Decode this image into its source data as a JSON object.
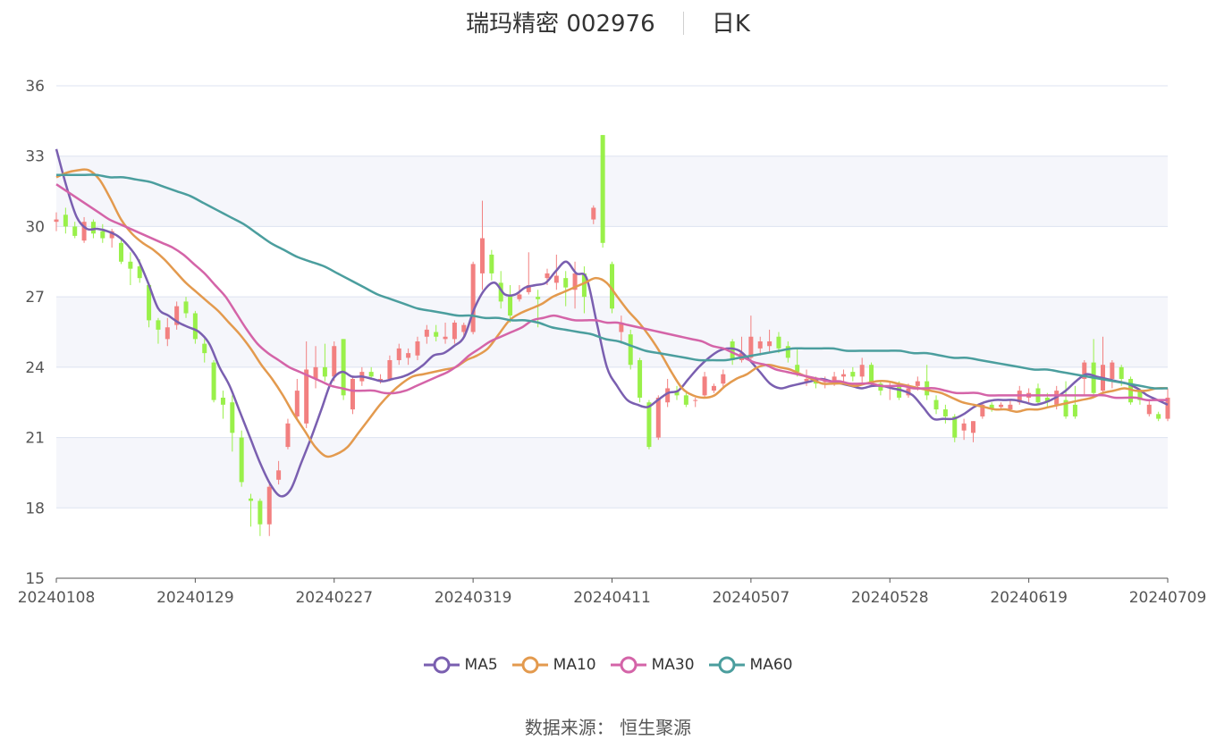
{
  "chart_data": {
    "type": "candlestick",
    "title": "瑞玛精密 002976",
    "period_label": "日K",
    "source_label": "数据来源：",
    "source_name": "恒生聚源",
    "ylim": [
      15,
      36
    ],
    "yticks": [
      15,
      18,
      21,
      24,
      27,
      30,
      33,
      36
    ],
    "xtick_labels": [
      "20240108",
      "20240129",
      "20240227",
      "20240319",
      "20240411",
      "20240507",
      "20240528",
      "20240619",
      "20240709"
    ],
    "xtick_index": [
      0,
      15,
      30,
      45,
      60,
      75,
      90,
      105,
      120
    ],
    "grid": true,
    "legend_position": "bottom",
    "colors": {
      "up": "#f28080",
      "down": "#99f04a",
      "ma5": "#7a5fb0",
      "ma10": "#e39a4e",
      "ma30": "#d464a8",
      "ma60": "#4b9e9e"
    },
    "candles": [
      [
        30.2,
        30.3,
        30.6,
        29.8
      ],
      [
        30.5,
        30.0,
        30.8,
        29.7
      ],
      [
        30.0,
        29.6,
        30.2,
        29.5
      ],
      [
        29.4,
        30.2,
        30.4,
        29.3
      ],
      [
        30.2,
        29.7,
        30.3,
        29.5
      ],
      [
        29.8,
        29.5,
        30.1,
        29.3
      ],
      [
        29.5,
        29.8,
        29.9,
        29.1
      ],
      [
        29.3,
        28.5,
        29.5,
        28.4
      ],
      [
        28.5,
        28.2,
        28.9,
        27.5
      ],
      [
        28.3,
        27.8,
        28.6,
        27.6
      ],
      [
        27.5,
        26.0,
        27.6,
        25.7
      ],
      [
        26.0,
        25.6,
        26.1,
        25.0
      ],
      [
        25.2,
        25.7,
        26.1,
        24.9
      ],
      [
        25.8,
        26.6,
        26.8,
        25.6
      ],
      [
        26.8,
        26.3,
        27.0,
        26.1
      ],
      [
        26.3,
        25.2,
        26.4,
        25.0
      ],
      [
        25.0,
        24.6,
        25.2,
        24.2
      ],
      [
        24.2,
        22.6,
        24.3,
        22.5
      ],
      [
        22.7,
        22.4,
        23.0,
        21.8
      ],
      [
        22.5,
        21.2,
        22.8,
        20.4
      ],
      [
        21.0,
        19.1,
        21.3,
        18.9
      ],
      [
        18.4,
        18.3,
        18.6,
        17.2
      ],
      [
        18.3,
        17.3,
        18.4,
        16.8
      ],
      [
        17.3,
        18.9,
        19.0,
        16.8
      ],
      [
        19.2,
        19.6,
        20.0,
        19.0
      ],
      [
        20.6,
        21.6,
        21.8,
        20.5
      ],
      [
        21.9,
        23.0,
        23.5,
        21.8
      ],
      [
        21.6,
        23.9,
        25.1,
        21.4
      ],
      [
        23.5,
        24.0,
        24.9,
        23.1
      ],
      [
        24.0,
        23.6,
        25.0,
        23.4
      ],
      [
        23.6,
        24.9,
        25.1,
        23.4
      ],
      [
        25.2,
        22.8,
        25.2,
        22.6
      ],
      [
        22.2,
        23.5,
        23.6,
        22.0
      ],
      [
        23.4,
        23.8,
        24.0,
        23.2
      ],
      [
        23.8,
        23.6,
        24.0,
        23.5
      ],
      [
        23.4,
        23.5,
        23.7,
        23.3
      ],
      [
        23.5,
        24.3,
        24.5,
        23.4
      ],
      [
        24.3,
        24.8,
        25.0,
        24.1
      ],
      [
        24.4,
        24.6,
        24.8,
        24.1
      ],
      [
        24.5,
        25.1,
        25.3,
        24.3
      ],
      [
        25.3,
        25.6,
        25.8,
        25.0
      ],
      [
        25.5,
        25.3,
        25.8,
        25.1
      ],
      [
        25.2,
        25.3,
        25.9,
        25.0
      ],
      [
        25.2,
        25.9,
        26.0,
        25.0
      ],
      [
        25.5,
        25.8,
        25.9,
        25.3
      ],
      [
        25.5,
        28.4,
        28.5,
        25.4
      ],
      [
        28.0,
        29.5,
        31.1,
        27.3
      ],
      [
        28.8,
        28.0,
        29.0,
        27.7
      ],
      [
        27.6,
        26.8,
        28.1,
        26.5
      ],
      [
        27.1,
        26.2,
        27.5,
        25.9
      ],
      [
        26.9,
        27.1,
        27.5,
        26.8
      ],
      [
        27.2,
        27.5,
        28.9,
        27.1
      ],
      [
        27.0,
        26.9,
        27.3,
        25.7
      ],
      [
        27.8,
        28.0,
        28.2,
        27.5
      ],
      [
        27.6,
        27.9,
        28.8,
        27.3
      ],
      [
        27.8,
        27.4,
        28.1,
        26.6
      ],
      [
        27.3,
        28.0,
        28.5,
        26.5
      ],
      [
        28.0,
        27.0,
        28.3,
        26.3
      ],
      [
        30.3,
        30.8,
        30.9,
        30.1
      ],
      [
        33.9,
        29.3,
        33.9,
        29.1
      ],
      [
        28.4,
        26.5,
        28.5,
        26.3
      ],
      [
        25.5,
        25.9,
        26.2,
        25.0
      ],
      [
        25.4,
        24.1,
        25.6,
        23.9
      ],
      [
        24.3,
        22.7,
        24.4,
        22.5
      ],
      [
        22.5,
        20.6,
        22.6,
        20.5
      ],
      [
        21.0,
        22.7,
        22.8,
        20.9
      ],
      [
        22.5,
        23.1,
        23.5,
        22.3
      ],
      [
        23.0,
        22.8,
        23.2,
        22.6
      ],
      [
        22.8,
        22.4,
        22.9,
        22.3
      ],
      [
        22.6,
        22.6,
        22.7,
        22.3
      ],
      [
        22.8,
        23.6,
        23.8,
        22.7
      ],
      [
        23.0,
        23.2,
        23.3,
        22.9
      ],
      [
        23.3,
        23.7,
        23.9,
        23.1
      ],
      [
        25.1,
        24.3,
        25.2,
        24.1
      ],
      [
        24.3,
        24.6,
        25.3,
        24.2
      ],
      [
        24.4,
        25.3,
        26.2,
        24.2
      ],
      [
        24.8,
        25.1,
        25.3,
        24.5
      ],
      [
        24.9,
        25.1,
        25.6,
        24.6
      ],
      [
        25.3,
        24.8,
        25.5,
        24.6
      ],
      [
        24.9,
        24.4,
        25.1,
        24.2
      ],
      [
        24.1,
        23.8,
        24.8,
        23.6
      ],
      [
        23.4,
        23.5,
        23.9,
        23.2
      ],
      [
        23.5,
        23.3,
        23.6,
        23.1
      ],
      [
        23.4,
        23.4,
        23.6,
        23.1
      ],
      [
        23.3,
        23.6,
        23.8,
        23.2
      ],
      [
        23.6,
        23.7,
        23.9,
        23.3
      ],
      [
        23.8,
        23.6,
        24.0,
        23.4
      ],
      [
        23.6,
        24.1,
        24.4,
        23.3
      ],
      [
        24.1,
        23.3,
        24.2,
        23.2
      ],
      [
        23.3,
        23.0,
        23.4,
        22.8
      ],
      [
        23.1,
        23.2,
        23.4,
        22.6
      ],
      [
        23.2,
        22.7,
        23.4,
        22.6
      ],
      [
        22.8,
        23.1,
        23.3,
        22.7
      ],
      [
        23.2,
        23.4,
        23.6,
        23.0
      ],
      [
        23.4,
        22.8,
        24.1,
        22.6
      ],
      [
        22.6,
        22.2,
        22.8,
        22.0
      ],
      [
        22.2,
        21.9,
        22.4,
        21.6
      ],
      [
        21.9,
        21.0,
        22.0,
        20.8
      ],
      [
        21.3,
        21.6,
        21.8,
        20.9
      ],
      [
        21.2,
        21.7,
        21.7,
        20.8
      ],
      [
        21.9,
        22.4,
        22.5,
        21.8
      ],
      [
        22.4,
        22.2,
        22.5,
        22.1
      ],
      [
        22.3,
        22.4,
        22.5,
        22.2
      ],
      [
        22.2,
        22.4,
        22.6,
        22.1
      ],
      [
        22.5,
        23.0,
        23.2,
        22.4
      ],
      [
        22.7,
        22.9,
        23.1,
        22.5
      ],
      [
        23.1,
        22.5,
        23.3,
        22.4
      ],
      [
        22.7,
        22.5,
        22.9,
        22.3
      ],
      [
        22.4,
        23.0,
        23.2,
        22.2
      ],
      [
        22.6,
        21.9,
        23.4,
        21.8
      ],
      [
        22.4,
        21.9,
        23.2,
        21.8
      ],
      [
        23.5,
        24.2,
        24.3,
        22.8
      ],
      [
        24.2,
        22.9,
        25.2,
        22.8
      ],
      [
        23.0,
        24.1,
        25.3,
        22.9
      ],
      [
        23.5,
        24.2,
        24.3,
        23.1
      ],
      [
        24.0,
        23.5,
        24.1,
        23.2
      ],
      [
        23.5,
        22.5,
        23.6,
        22.4
      ],
      [
        23.0,
        22.6,
        23.1,
        22.4
      ],
      [
        22.0,
        22.4,
        22.6,
        21.9
      ],
      [
        22.0,
        21.8,
        22.1,
        21.7
      ],
      [
        21.8,
        22.7,
        23.1,
        21.7
      ]
    ],
    "series": [
      {
        "name": "MA5",
        "values": [
          33.3,
          31.7,
          30.4,
          29.9,
          29.9,
          29.8,
          29.6,
          29.2,
          28.6,
          27.6,
          26.5,
          26.2,
          25.9,
          25.7,
          25.5,
          25.0,
          24.0,
          23.2,
          22.1,
          21.0,
          19.9,
          19.0,
          18.5,
          18.8,
          19.9,
          21.0,
          22.2,
          23.4,
          23.8,
          23.6,
          23.6,
          23.5,
          23.4,
          23.5,
          23.6,
          23.8,
          24.1,
          24.5,
          24.6,
          24.9,
          25.3,
          26.5,
          27.3,
          27.6,
          27.1,
          27.1,
          27.4,
          27.5,
          27.6,
          28.1,
          28.5,
          28.0,
          27.8,
          25.9,
          24.0,
          23.2,
          22.6,
          22.4,
          22.3,
          22.6,
          22.9,
          23.0,
          23.5,
          24.0,
          24.4,
          24.7,
          24.8,
          24.7,
          24.3,
          23.8,
          23.3,
          23.1,
          23.2,
          23.3,
          23.4,
          23.5,
          23.4,
          23.3,
          23.2,
          23.1,
          23.2,
          23.2,
          23.1,
          23.0,
          22.8,
          22.3,
          21.8,
          21.8,
          21.8,
          22.0,
          22.3,
          22.5,
          22.6,
          22.6,
          22.6,
          22.5,
          22.4,
          22.5,
          22.7,
          23.0,
          23.4,
          23.7,
          23.6,
          23.5,
          23.4,
          23.3,
          23.1,
          22.8,
          22.6,
          22.4
        ]
      },
      {
        "name": "MA10",
        "values": [
          32.1,
          32.3,
          32.4,
          32.4,
          32.0,
          31.2,
          30.3,
          29.7,
          29.3,
          29.0,
          28.6,
          28.1,
          27.6,
          27.2,
          26.8,
          26.4,
          25.9,
          25.4,
          24.8,
          24.1,
          23.5,
          22.8,
          22.0,
          21.3,
          20.6,
          20.2,
          20.3,
          20.6,
          21.2,
          21.8,
          22.4,
          22.9,
          23.3,
          23.6,
          23.7,
          23.8,
          23.9,
          24.0,
          24.3,
          24.5,
          24.8,
          25.4,
          26.0,
          26.3,
          26.5,
          26.7,
          27.0,
          27.2,
          27.4,
          27.6,
          27.8,
          27.6,
          27.0,
          26.4,
          25.9,
          25.3,
          24.6,
          23.8,
          23.1,
          22.8,
          22.7,
          22.8,
          23.2,
          23.5,
          23.7,
          24.0,
          24.1,
          24.0,
          23.9,
          23.7,
          23.5,
          23.3,
          23.3,
          23.3,
          23.2,
          23.3,
          23.4,
          23.4,
          23.3,
          23.2,
          23.1,
          23.0,
          22.9,
          22.7,
          22.5,
          22.4,
          22.3,
          22.2,
          22.2,
          22.1,
          22.2,
          22.2,
          22.3,
          22.4,
          22.5,
          22.6,
          22.7,
          22.9,
          23.0,
          23.1,
          23.0,
          23.0,
          23.1,
          23.1
        ]
      },
      {
        "name": "MA30",
        "values": [
          31.8,
          31.5,
          31.2,
          30.9,
          30.6,
          30.3,
          30.1,
          29.9,
          29.7,
          29.5,
          29.3,
          29.1,
          28.8,
          28.4,
          28.0,
          27.5,
          27.0,
          26.3,
          25.6,
          25.0,
          24.6,
          24.3,
          24.0,
          23.8,
          23.6,
          23.4,
          23.2,
          23.1,
          23.0,
          23.0,
          23.0,
          22.9,
          22.9,
          23.0,
          23.2,
          23.4,
          23.6,
          23.8,
          24.1,
          24.5,
          24.8,
          25.1,
          25.3,
          25.5,
          25.7,
          26.0,
          26.1,
          26.2,
          26.1,
          26.0,
          26.0,
          26.0,
          25.9,
          25.9,
          25.8,
          25.7,
          25.6,
          25.5,
          25.4,
          25.3,
          25.2,
          25.1,
          24.9,
          24.8,
          24.6,
          24.4,
          24.2,
          24.1,
          23.9,
          23.8,
          23.7,
          23.6,
          23.5,
          23.4,
          23.4,
          23.3,
          23.3,
          23.3,
          23.2,
          23.2,
          23.2,
          23.1,
          23.1,
          23.1,
          23.0,
          22.9,
          22.9,
          22.9,
          22.8,
          22.8,
          22.8,
          22.8,
          22.8,
          22.8,
          22.8,
          22.8,
          22.8,
          22.8,
          22.8,
          22.8,
          22.7,
          22.7,
          22.7,
          22.6,
          22.6,
          22.6
        ]
      },
      {
        "name": "MA60",
        "values": [
          32.2,
          32.2,
          32.2,
          32.2,
          32.1,
          32.1,
          32.0,
          31.9,
          31.7,
          31.5,
          31.3,
          31.0,
          30.7,
          30.4,
          30.1,
          29.7,
          29.3,
          29.0,
          28.7,
          28.5,
          28.3,
          28.0,
          27.7,
          27.4,
          27.1,
          26.9,
          26.7,
          26.5,
          26.4,
          26.3,
          26.2,
          26.2,
          26.1,
          26.1,
          26.0,
          26.0,
          25.9,
          25.7,
          25.6,
          25.5,
          25.4,
          25.2,
          25.1,
          24.9,
          24.7,
          24.6,
          24.5,
          24.4,
          24.3,
          24.3,
          24.3,
          24.4,
          24.5,
          24.6,
          24.7,
          24.8,
          24.8,
          24.8,
          24.8,
          24.7,
          24.7,
          24.7,
          24.7,
          24.7,
          24.6,
          24.6,
          24.5,
          24.4,
          24.4,
          24.3,
          24.2,
          24.1,
          24.0,
          23.9,
          23.9,
          23.8,
          23.7,
          23.6,
          23.5,
          23.4,
          23.3,
          23.2,
          23.1,
          23.1
        ]
      }
    ]
  }
}
